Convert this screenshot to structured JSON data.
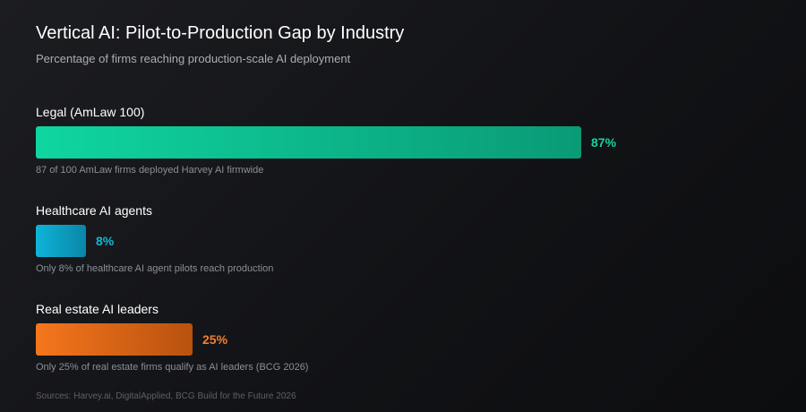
{
  "header": {
    "title": "Vertical AI: Pilot-to-Production Gap by Industry",
    "subtitle": "Percentage of firms reaching production-scale AI deployment"
  },
  "chart_data": {
    "type": "bar",
    "orientation": "horizontal",
    "title": "Vertical AI: Pilot-to-Production Gap by Industry",
    "subtitle": "Percentage of firms reaching production-scale AI deployment",
    "xlim": [
      0,
      100
    ],
    "grid": false,
    "categories": [
      "Legal (AmLaw 100)",
      "Healthcare AI agents",
      "Real estate AI leaders"
    ],
    "values": [
      87,
      8,
      25
    ],
    "value_labels": [
      "87%",
      "8%",
      "25%"
    ],
    "notes": [
      "87 of 100 AmLaw firms deployed Harvey AI firmwide",
      "Only 8% of healthcare AI agent pilots reach production",
      "Only 25% of real estate firms qualify as AI leaders (BCG 2026)"
    ],
    "colors": [
      {
        "from": "#0fd6a0",
        "to": "#0a9a76",
        "label": "#16d2a0"
      },
      {
        "from": "#0fb4d8",
        "to": "#0a86a8",
        "label": "#14b8d6"
      },
      {
        "from": "#f5761c",
        "to": "#b8520f",
        "label": "#f08030"
      }
    ]
  },
  "footer": {
    "sources": "Sources: Harvey.ai, DigitalApplied, BCG Build for the Future 2026"
  }
}
